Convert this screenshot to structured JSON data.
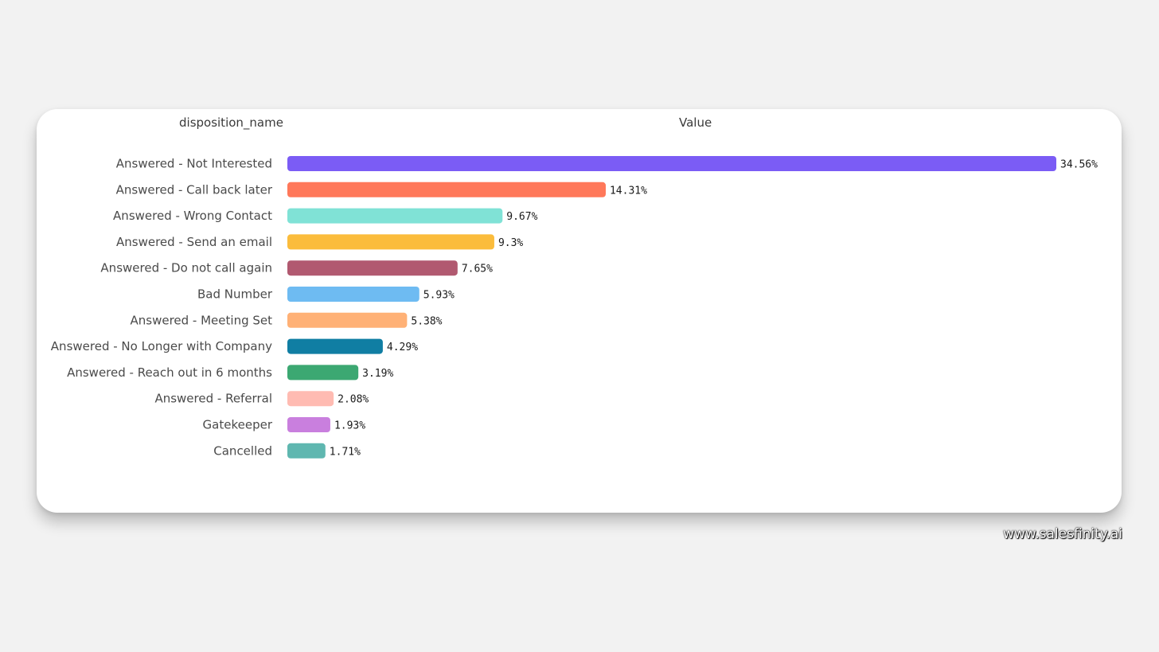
{
  "chart_data": {
    "type": "bar",
    "orientation": "horizontal",
    "column_headers": {
      "category": "disposition_name",
      "value": "Value"
    },
    "categories": [
      "Answered - Not Interested",
      "Answered - Call back later",
      "Answered - Wrong Contact",
      "Answered - Send an email",
      "Answered - Do not call again",
      "Bad Number",
      "Answered - Meeting Set",
      "Answered - No Longer with Company",
      "Answered - Reach out in 6 months",
      "Answered - Referral",
      "Gatekeeper",
      "Cancelled"
    ],
    "values": [
      34.56,
      14.31,
      9.67,
      9.3,
      7.65,
      5.93,
      5.38,
      4.29,
      3.19,
      2.08,
      1.93,
      1.71
    ],
    "value_labels": [
      "34.56%",
      "14.31%",
      "9.67%",
      "9.3%",
      "7.65%",
      "5.93%",
      "5.38%",
      "4.29%",
      "3.19%",
      "2.08%",
      "1.93%",
      "1.71%"
    ],
    "colors": [
      "#7b5cf5",
      "#ff785a",
      "#80e2d6",
      "#fbbc3c",
      "#b15970",
      "#6ebbf2",
      "#ffb176",
      "#107ea3",
      "#3ca872",
      "#ffbbb2",
      "#c97fde",
      "#5fb7b0"
    ],
    "grid": false,
    "legend": "none"
  },
  "watermark": "www.salesfinity.ai"
}
